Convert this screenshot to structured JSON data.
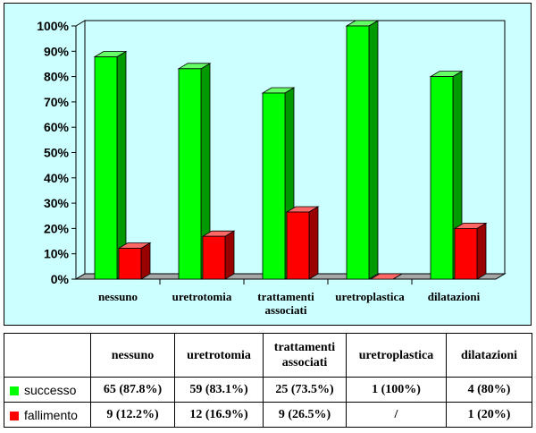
{
  "colors": {
    "success": "#00ff00",
    "success_side": "#009900",
    "success_top": "#66ff66",
    "failure": "#ff0000",
    "failure_side": "#990000",
    "failure_top": "#ff6666",
    "floor": "#a6a6a6"
  },
  "chart_data": {
    "type": "bar",
    "categories": [
      [
        "nessuno"
      ],
      [
        "uretrotomia"
      ],
      [
        "trattamenti",
        "associati"
      ],
      [
        "uretroplastica"
      ],
      [
        "dilatazioni"
      ]
    ],
    "series": [
      {
        "name": "successo",
        "values": [
          87.8,
          83.1,
          73.5,
          100,
          80
        ]
      },
      {
        "name": "fallimento",
        "values": [
          12.2,
          16.9,
          26.5,
          0,
          20
        ]
      }
    ],
    "y_ticks": [
      "0%",
      "10%",
      "20%",
      "30%",
      "40%",
      "50%",
      "60%",
      "70%",
      "80%",
      "90%",
      "100%"
    ],
    "ylim": [
      0,
      100
    ],
    "grid": false,
    "legend": "table"
  },
  "table": {
    "headers": [
      [
        "nessuno"
      ],
      [
        "uretrotomia"
      ],
      [
        "trattamenti",
        "associati"
      ],
      [
        "uretroplastica"
      ],
      [
        "dilatazioni"
      ]
    ],
    "rows": [
      {
        "label": "successo",
        "cells": [
          "65 (87.8%)",
          "59 (83.1%)",
          "25 (73.5%)",
          "1 (100%)",
          "4 (80%)"
        ]
      },
      {
        "label": "fallimento",
        "cells": [
          "9 (12.2%)",
          "12 (16.9%)",
          "9 (26.5%)",
          "/",
          "1 (20%)"
        ]
      }
    ]
  }
}
